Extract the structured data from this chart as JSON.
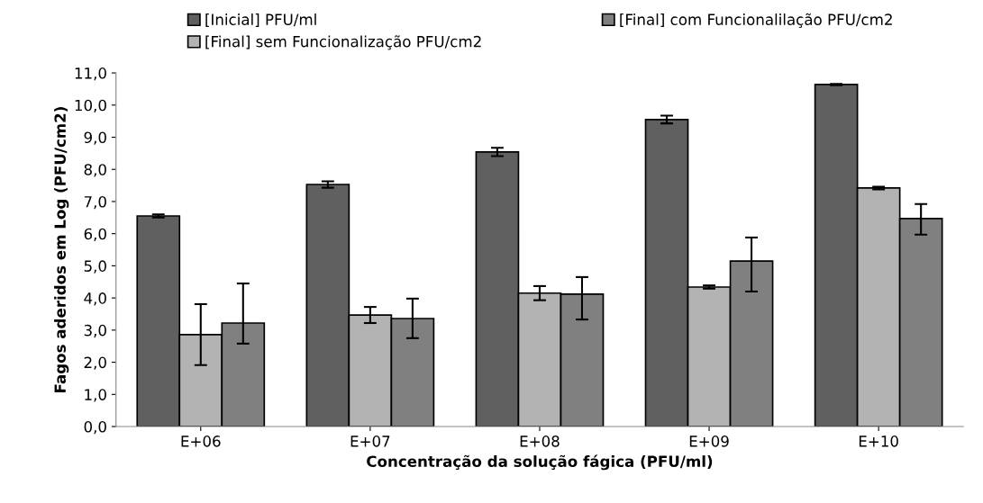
{
  "chart_data": {
    "type": "bar",
    "xlabel": "Concentração da solução fágica (PFU/ml)",
    "ylabel": "Fagos aderidos em Log (PFU/cm2)",
    "categories": [
      "E+06",
      "E+07",
      "E+08",
      "E+09",
      "E+10"
    ],
    "series": [
      {
        "name": "[Inicial] PFU/ml",
        "color": "#606060",
        "values": [
          6.55,
          7.53,
          8.54,
          9.55,
          10.64
        ],
        "errors": [
          0.05,
          0.1,
          0.13,
          0.12,
          0.02
        ]
      },
      {
        "name": "[Final] sem Funcionalização PFU/cm2",
        "color": "#b3b3b3",
        "values": [
          2.86,
          3.47,
          4.15,
          4.34,
          7.42
        ],
        "errors": [
          0.95,
          0.25,
          0.22,
          0.05,
          0.04
        ]
      },
      {
        "name": "[Final] com Funcionalilação PFU/cm2",
        "color": "#808080",
        "values": [
          3.22,
          3.36,
          4.12,
          5.15,
          6.47
        ],
        "errors": [
          [
            2.58,
            4.45
          ],
          [
            2.75,
            3.98
          ],
          [
            3.33,
            4.65
          ],
          [
            4.2,
            5.88
          ],
          [
            5.97,
            6.92
          ]
        ]
      }
    ],
    "ylim": [
      0,
      11
    ],
    "yticks": [
      {
        "value": 0,
        "label": "0,0"
      },
      {
        "value": 1,
        "label": "1,0"
      },
      {
        "value": 2,
        "label": "2,0"
      },
      {
        "value": 3,
        "label": "3,0"
      },
      {
        "value": 4,
        "label": "4,0"
      },
      {
        "value": 5,
        "label": "5,0"
      },
      {
        "value": 6,
        "label": "6,0"
      },
      {
        "value": 7,
        "label": "7,0"
      },
      {
        "value": 8,
        "label": "8,0"
      },
      {
        "value": 9,
        "label": "9,0"
      },
      {
        "value": 10,
        "label": "10,0"
      },
      {
        "value": 11,
        "label": "11,0"
      }
    ],
    "grid": false,
    "legend": "top"
  }
}
